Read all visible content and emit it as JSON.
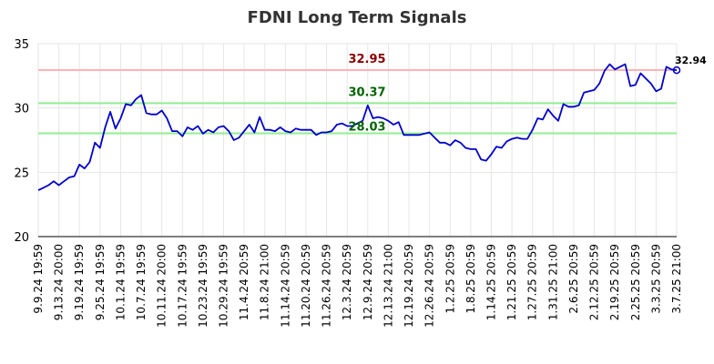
{
  "chart_data": {
    "type": "line",
    "title": "FDNI Long Term Signals",
    "xlabel": "",
    "ylabel": "",
    "ylim": [
      20,
      35
    ],
    "yticks": [
      "20",
      "25",
      "30",
      "35"
    ],
    "grid": true,
    "legend": "none",
    "colors": {
      "line": "#0000cc",
      "resistance": "#ffb3b3",
      "support": "#90ee90",
      "resistance_text": "#8b0000",
      "support_text": "#006400",
      "grid": "#e6e6e6"
    },
    "xticks": [
      "9.9.24 19:59",
      "9.13.24 20:00",
      "9.19.24 19:59",
      "9.25.24 19:59",
      "10.1.24 19:59",
      "10.7.24 19:59",
      "10.11.24 20:00",
      "10.17.24 19:59",
      "10.23.24 19:59",
      "10.29.24 19:59",
      "11.4.24 20:59",
      "11.8.24 21:00",
      "11.14.24 20:59",
      "11.20.24 20:59",
      "11.26.24 20:59",
      "12.3.24 20:59",
      "12.9.24 20:59",
      "12.13.24 21:00",
      "12.19.24 20:59",
      "12.26.24 20:59",
      "1.2.25 20:59",
      "1.8.25 20:59",
      "1.14.25 20:59",
      "1.21.25 20:59",
      "1.27.25 20:59",
      "1.31.25 21:00",
      "2.6.25 20:59",
      "2.12.25 20:59",
      "2.19.25 20:59",
      "2.25.25 20:59",
      "3.3.25 20:59",
      "3.7.25 21:00"
    ],
    "series": [
      {
        "values": [
          23.6,
          23.8,
          24.0,
          24.3,
          24.0,
          24.3,
          24.6,
          24.7,
          25.6,
          25.3,
          25.8,
          27.3,
          26.9,
          28.5,
          29.7,
          28.4,
          29.2,
          30.3,
          30.2,
          30.7,
          31.0,
          29.6,
          29.5,
          29.5,
          29.8,
          29.2,
          28.2,
          28.2,
          27.8,
          28.5,
          28.3,
          28.6,
          28.0,
          28.3,
          28.1,
          28.5,
          28.6,
          28.2,
          27.5,
          27.7,
          28.2,
          28.7,
          28.1,
          29.3,
          28.3,
          28.3,
          28.2,
          28.5,
          28.2,
          28.1,
          28.4,
          28.3,
          28.3,
          28.3,
          27.9,
          28.1,
          28.1,
          28.2,
          28.7,
          28.8,
          28.6,
          28.6,
          28.8,
          29.0,
          30.2,
          29.2,
          29.3,
          29.2,
          29.0,
          28.7,
          28.9,
          27.9,
          27.9,
          27.9,
          27.9,
          28.0,
          28.1,
          27.7,
          27.3,
          27.3,
          27.1,
          27.5,
          27.3,
          26.9,
          26.8,
          26.8,
          26.0,
          25.9,
          26.4,
          27.0,
          26.9,
          27.4,
          27.6,
          27.7,
          27.6,
          27.6,
          28.3,
          29.2,
          29.1,
          29.9,
          29.4,
          29.0,
          30.3,
          30.1,
          30.1,
          30.2,
          31.2,
          31.3,
          31.4,
          31.9,
          32.9,
          33.4,
          33.0,
          33.2,
          33.4,
          31.7,
          31.8,
          32.7,
          32.3,
          31.9,
          31.3,
          31.5,
          33.2,
          33.0,
          32.94
        ]
      }
    ],
    "levels": [
      {
        "name": "resistance",
        "value": 32.95,
        "label": "32.95"
      },
      {
        "name": "support-high",
        "value": 30.37,
        "label": "30.37"
      },
      {
        "name": "support-low",
        "value": 28.03,
        "label": "28.03"
      }
    ],
    "last_label": "32.94"
  }
}
